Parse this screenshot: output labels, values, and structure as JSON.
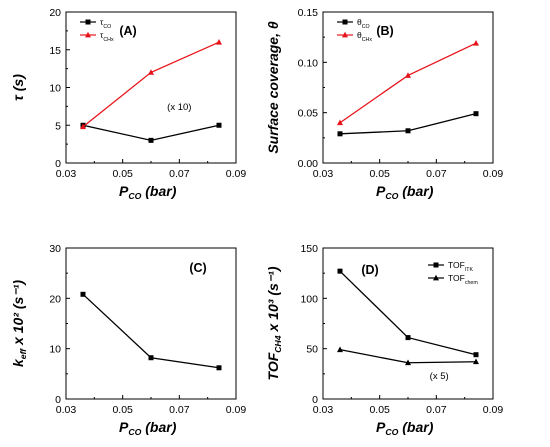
{
  "chart_data": [
    {
      "type": "line",
      "panel_label": "(A)",
      "xlabel_main": "P",
      "xlabel_sub": "CO",
      "xlabel_unit": " (bar)",
      "ylabel_main": "τ",
      "ylabel_sub": "",
      "ylabel_unit": " (s)",
      "xlim": [
        0.03,
        0.09
      ],
      "ylim": [
        0,
        20
      ],
      "xticks": [
        0.03,
        0.05,
        0.07,
        0.09
      ],
      "xtick_labels": [
        "0.03",
        "0.05",
        "0.07",
        "0.09"
      ],
      "yticks": [
        0,
        5,
        10,
        15,
        20
      ],
      "ytick_labels": [
        "0",
        "5",
        "10",
        "15",
        "20"
      ],
      "legend_position": "top-left",
      "series": [
        {
          "name_main": "τ",
          "name_sub": "CO",
          "color": "#000000",
          "marker": "square",
          "x": [
            0.036,
            0.06,
            0.084
          ],
          "y": [
            5.0,
            3.0,
            5.0
          ]
        },
        {
          "name_main": "τ",
          "name_sub": "CHx",
          "color": "#e8141b",
          "marker": "triangle",
          "x": [
            0.036,
            0.06,
            0.084
          ],
          "y": [
            4.8,
            12.0,
            16.0
          ]
        }
      ],
      "annotations": [
        {
          "text": "(x 10)",
          "x": 0.07,
          "y": 7.0
        }
      ]
    },
    {
      "type": "line",
      "panel_label": "(B)",
      "xlabel_main": "P",
      "xlabel_sub": "CO",
      "xlabel_unit": " (bar)",
      "ylabel_main": "Surface coverage, θ",
      "ylabel_sub": "",
      "ylabel_unit": "",
      "xlim": [
        0.03,
        0.09
      ],
      "ylim": [
        0,
        0.15
      ],
      "xticks": [
        0.03,
        0.05,
        0.07,
        0.09
      ],
      "xtick_labels": [
        "0.03",
        "0.05",
        "0.07",
        "0.09"
      ],
      "yticks": [
        0,
        0.05,
        0.1,
        0.15
      ],
      "ytick_labels": [
        "0.00",
        "0.05",
        "0.10",
        "0.15"
      ],
      "legend_position": "top-left",
      "series": [
        {
          "name_main": "θ",
          "name_sub": "CO",
          "color": "#000000",
          "marker": "square",
          "x": [
            0.036,
            0.06,
            0.084
          ],
          "y": [
            0.029,
            0.032,
            0.049
          ]
        },
        {
          "name_main": "θ",
          "name_sub": "CHx",
          "color": "#e8141b",
          "marker": "triangle",
          "x": [
            0.036,
            0.06,
            0.084
          ],
          "y": [
            0.04,
            0.087,
            0.119
          ]
        }
      ],
      "annotations": []
    },
    {
      "type": "line",
      "panel_label": "(C)",
      "xlabel_main": "P",
      "xlabel_sub": "CO",
      "xlabel_unit": " (bar)",
      "ylabel_main": "k",
      "ylabel_sub": "eff",
      "ylabel_unit": " x 10² (s⁻¹)",
      "xlim": [
        0.03,
        0.09
      ],
      "ylim": [
        0,
        30
      ],
      "xticks": [
        0.03,
        0.05,
        0.07,
        0.09
      ],
      "xtick_labels": [
        "0.03",
        "0.05",
        "0.07",
        "0.09"
      ],
      "yticks": [
        0,
        10,
        20,
        30
      ],
      "ytick_labels": [
        "0",
        "10",
        "20",
        "30"
      ],
      "legend_position": "none",
      "series": [
        {
          "name_main": "",
          "name_sub": "",
          "color": "#000000",
          "marker": "square",
          "x": [
            0.036,
            0.06,
            0.084
          ],
          "y": [
            20.8,
            8.2,
            6.2
          ]
        }
      ],
      "annotations": []
    },
    {
      "type": "line",
      "panel_label": "(D)",
      "xlabel_main": "P",
      "xlabel_sub": "CO",
      "xlabel_unit": " (bar)",
      "ylabel_main": "TOF",
      "ylabel_sub": "CH4",
      "ylabel_unit": " x 10³ (s⁻¹)",
      "xlim": [
        0.03,
        0.09
      ],
      "ylim": [
        0,
        150
      ],
      "xticks": [
        0.03,
        0.05,
        0.07,
        0.09
      ],
      "xtick_labels": [
        "0.03",
        "0.05",
        "0.07",
        "0.09"
      ],
      "yticks": [
        0,
        50,
        100,
        150
      ],
      "ytick_labels": [
        "0",
        "50",
        "100",
        "150"
      ],
      "legend_position": "top-right",
      "series": [
        {
          "name_main": "TOF",
          "name_sub": "ITK",
          "color": "#000000",
          "marker": "square",
          "x": [
            0.036,
            0.06,
            0.084
          ],
          "y": [
            127,
            61,
            44
          ]
        },
        {
          "name_main": "TOF",
          "name_sub": "chem",
          "color": "#000000",
          "marker": "triangle",
          "x": [
            0.036,
            0.06,
            0.084
          ],
          "y": [
            49,
            36,
            37
          ]
        }
      ],
      "annotations": [
        {
          "text": "(x 5)",
          "x": 0.071,
          "y": 20
        }
      ]
    }
  ]
}
